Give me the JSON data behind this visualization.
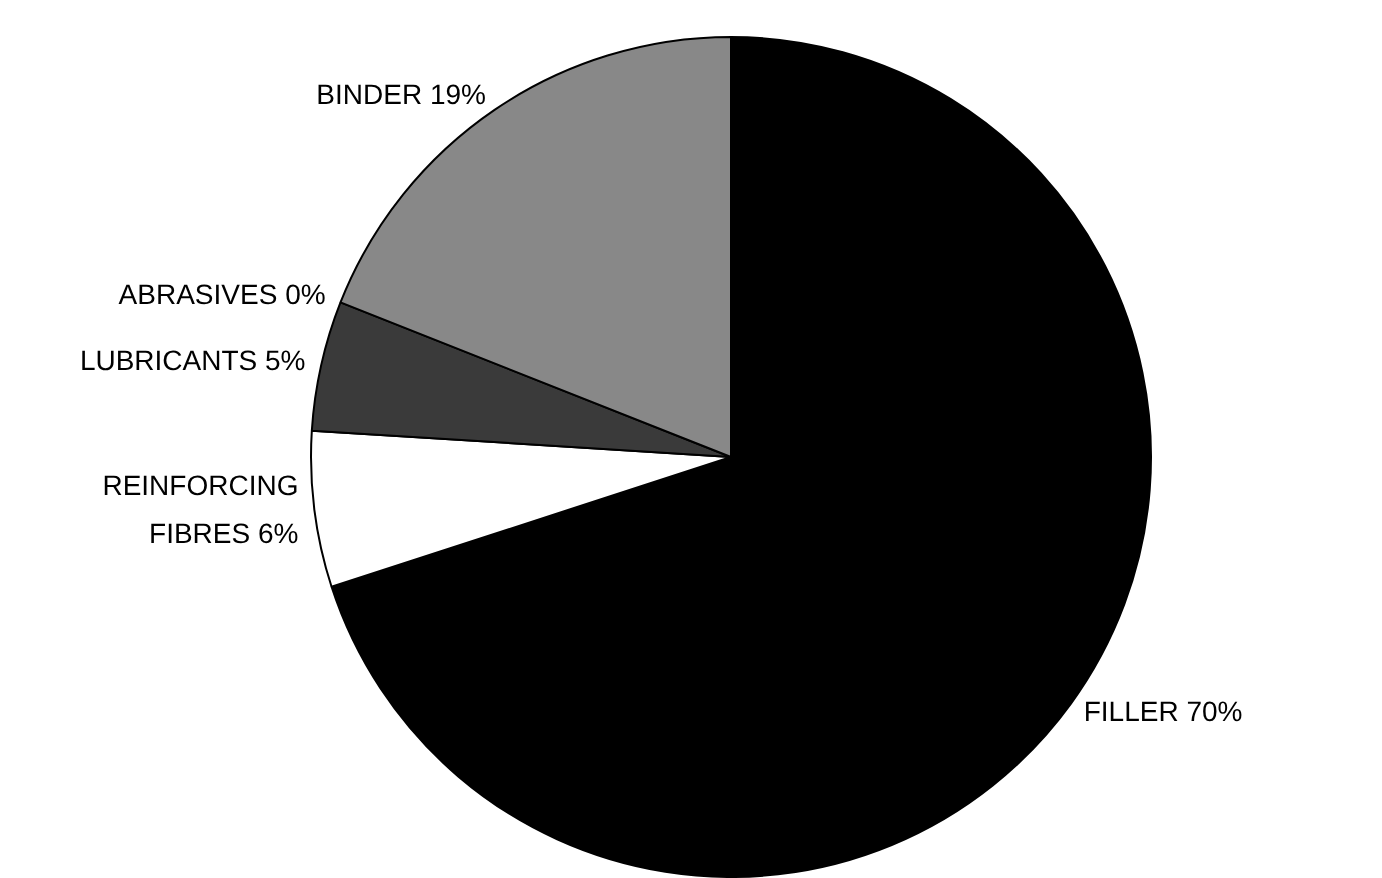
{
  "chart_data": {
    "type": "pie",
    "categories": [
      "FILLER",
      "REINFORCING FIBRES",
      "LUBRICANTS",
      "ABRASIVES",
      "BINDER"
    ],
    "values": [
      70,
      6,
      5,
      0,
      19
    ],
    "value_labels": [
      "70%",
      "6%",
      "5%",
      "0%",
      "19%"
    ],
    "colors": [
      "#000000",
      "#ffffff",
      "#3a3a3a",
      "#aaaaaa",
      "#888888"
    ],
    "legend": false
  }
}
